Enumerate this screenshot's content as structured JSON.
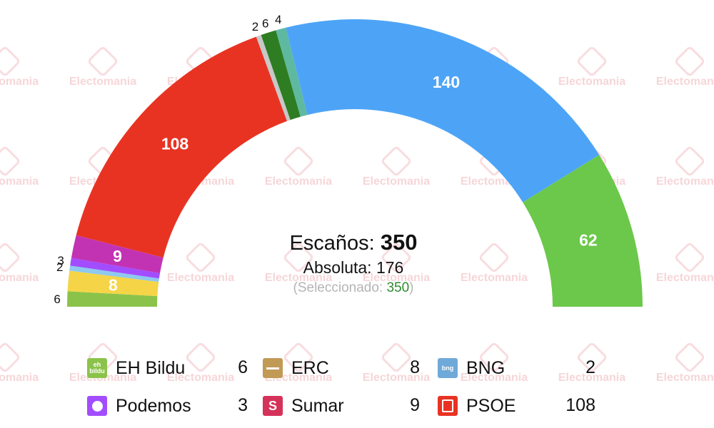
{
  "watermark_text": "Electomania",
  "chart_data": {
    "type": "parliament-hemicycle",
    "total_seats": 350,
    "segments": [
      {
        "name": "",
        "seats": 6,
        "color": "#8bc34a"
      },
      {
        "name": "",
        "seats": 8,
        "color": "#f5d547"
      },
      {
        "name": "",
        "seats": 2,
        "color": "#8ec9ee"
      },
      {
        "name": "",
        "seats": 3,
        "color": "#a24dff"
      },
      {
        "name": "",
        "seats": 9,
        "color": "#c233b4"
      },
      {
        "name": "",
        "seats": 108,
        "color": "#e83323"
      },
      {
        "name": "",
        "seats": 2,
        "color": "#c8c8c8"
      },
      {
        "name": "",
        "seats": 6,
        "color": "#2e7d22"
      },
      {
        "name": "",
        "seats": 4,
        "color": "#5fb9a0"
      },
      {
        "name": "",
        "seats": 140,
        "color": "#4da4f7"
      },
      {
        "name": "",
        "seats": 62,
        "color": "#6cc84b"
      }
    ],
    "seat_labels": [
      "6",
      "8",
      "2",
      "3",
      "9",
      "108",
      "2",
      "6",
      "4",
      "140",
      "62"
    ]
  },
  "center": {
    "seats_label": "Escaños:",
    "seats_value": "350",
    "absolute_label": "Absoluta:",
    "absolute_value": "176",
    "selected_open": "(Seleccionado: ",
    "selected_value": "350",
    "selected_close": ")"
  },
  "legend": [
    {
      "name": "EH Bildu",
      "value": "6",
      "icon_text": "eh bildu",
      "icon": "eh-bildu-logo-icon",
      "color": "#8bc34a"
    },
    {
      "name": "ERC",
      "value": "8",
      "icon_text": "",
      "icon": "erc-logo-icon",
      "color": "#c19a56"
    },
    {
      "name": "BNG",
      "value": "2",
      "icon_text": "bng",
      "icon": "bng-logo-icon",
      "color": "#6fa9d8"
    },
    {
      "name": "Podemos",
      "value": "3",
      "icon_text": "",
      "icon": "podemos-logo-icon",
      "color": "#a24dff"
    },
    {
      "name": "Sumar",
      "value": "9",
      "icon_text": "S",
      "icon": "sumar-logo-icon",
      "color": "#d5325a"
    },
    {
      "name": "PSOE",
      "value": "108",
      "icon_text": "",
      "icon": "psoe-logo-icon",
      "color": "#e83323"
    }
  ]
}
